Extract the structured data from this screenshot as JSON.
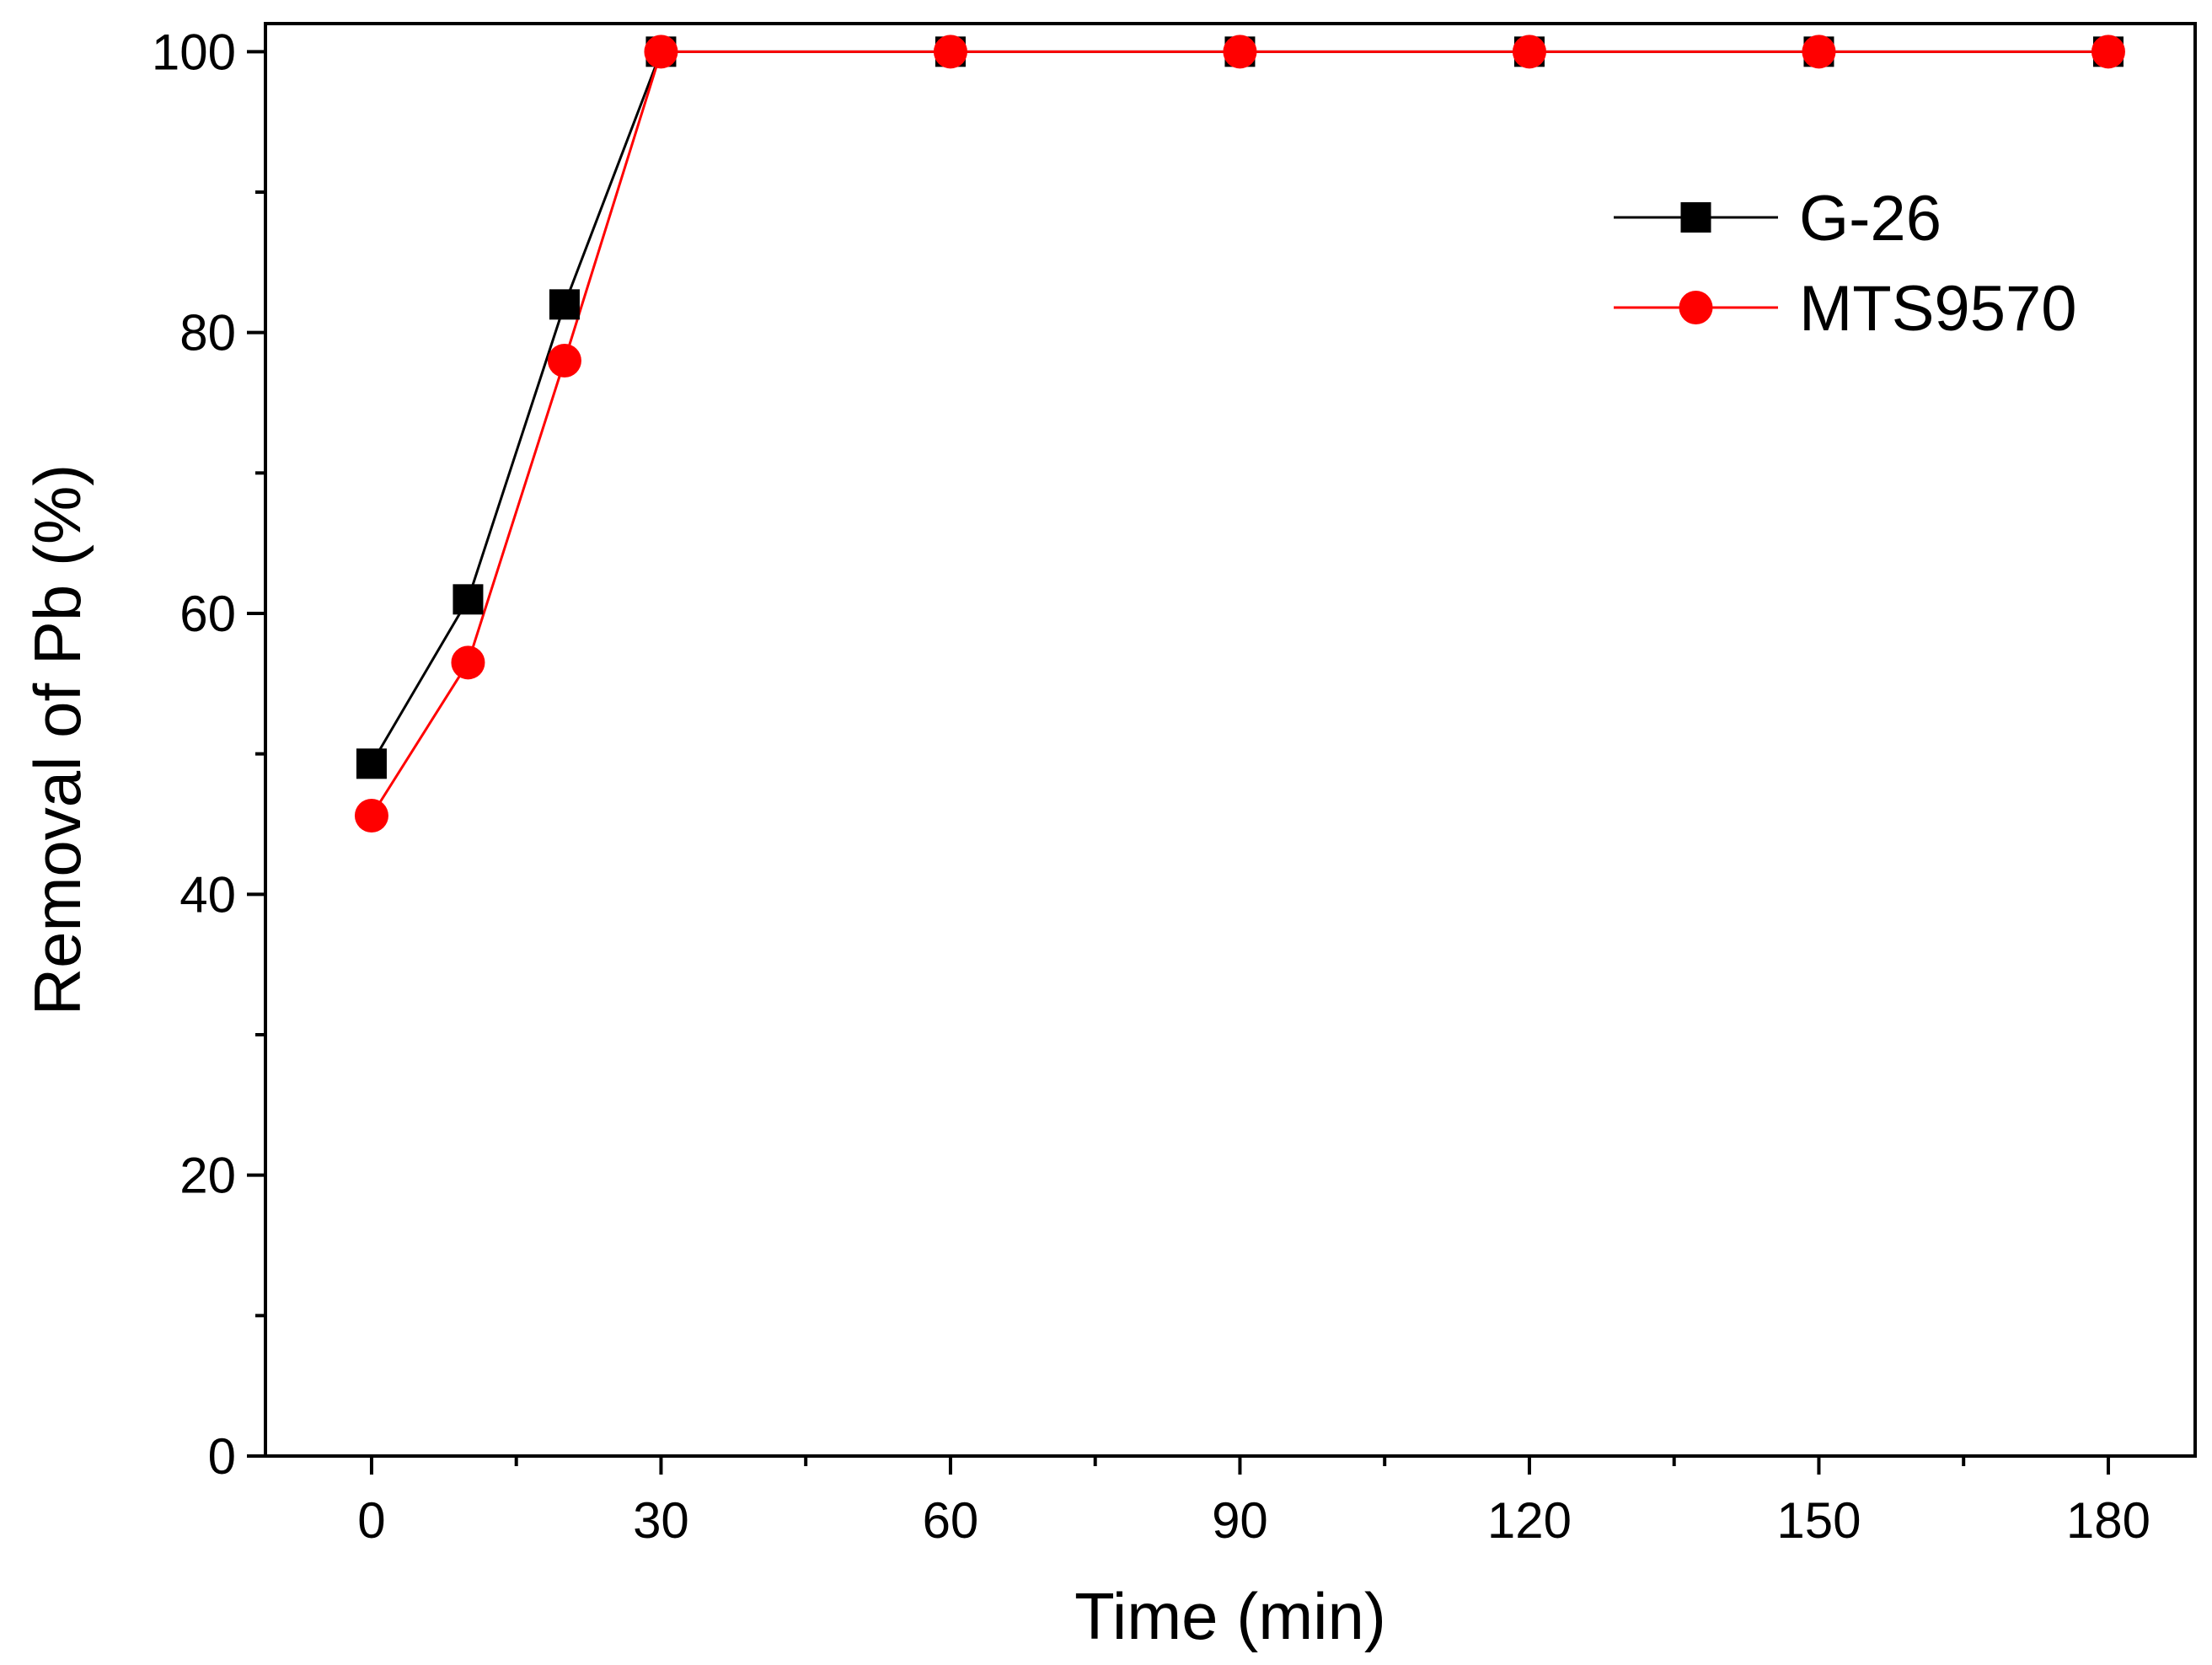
{
  "chart_data": {
    "type": "line",
    "title": "",
    "xlabel": "Time (min)",
    "ylabel": "Removal of Pb (%)",
    "xlim": [
      -11,
      189
    ],
    "ylim": [
      0,
      102
    ],
    "xticks": [
      0,
      30,
      60,
      90,
      120,
      150,
      180
    ],
    "xticks_minor": [
      15,
      45,
      75,
      105,
      135,
      165
    ],
    "yticks": [
      0,
      20,
      40,
      60,
      80,
      100
    ],
    "yticks_minor": [
      10,
      30,
      50,
      70,
      90
    ],
    "grid": false,
    "legend_position": "top-right",
    "series": [
      {
        "name": "G-26",
        "color": "#000000",
        "marker": "square",
        "x": [
          0,
          10,
          20,
          30,
          60,
          90,
          120,
          150,
          180
        ],
        "values": [
          49.3,
          61,
          82,
          100,
          100,
          100,
          100,
          100,
          100
        ]
      },
      {
        "name": "MTS9570",
        "color": "#ff0000",
        "marker": "circle",
        "x": [
          0,
          10,
          20,
          30,
          60,
          90,
          120,
          150,
          180
        ],
        "values": [
          45.6,
          56.5,
          78,
          100,
          100,
          100,
          100,
          100,
          100
        ]
      }
    ]
  }
}
